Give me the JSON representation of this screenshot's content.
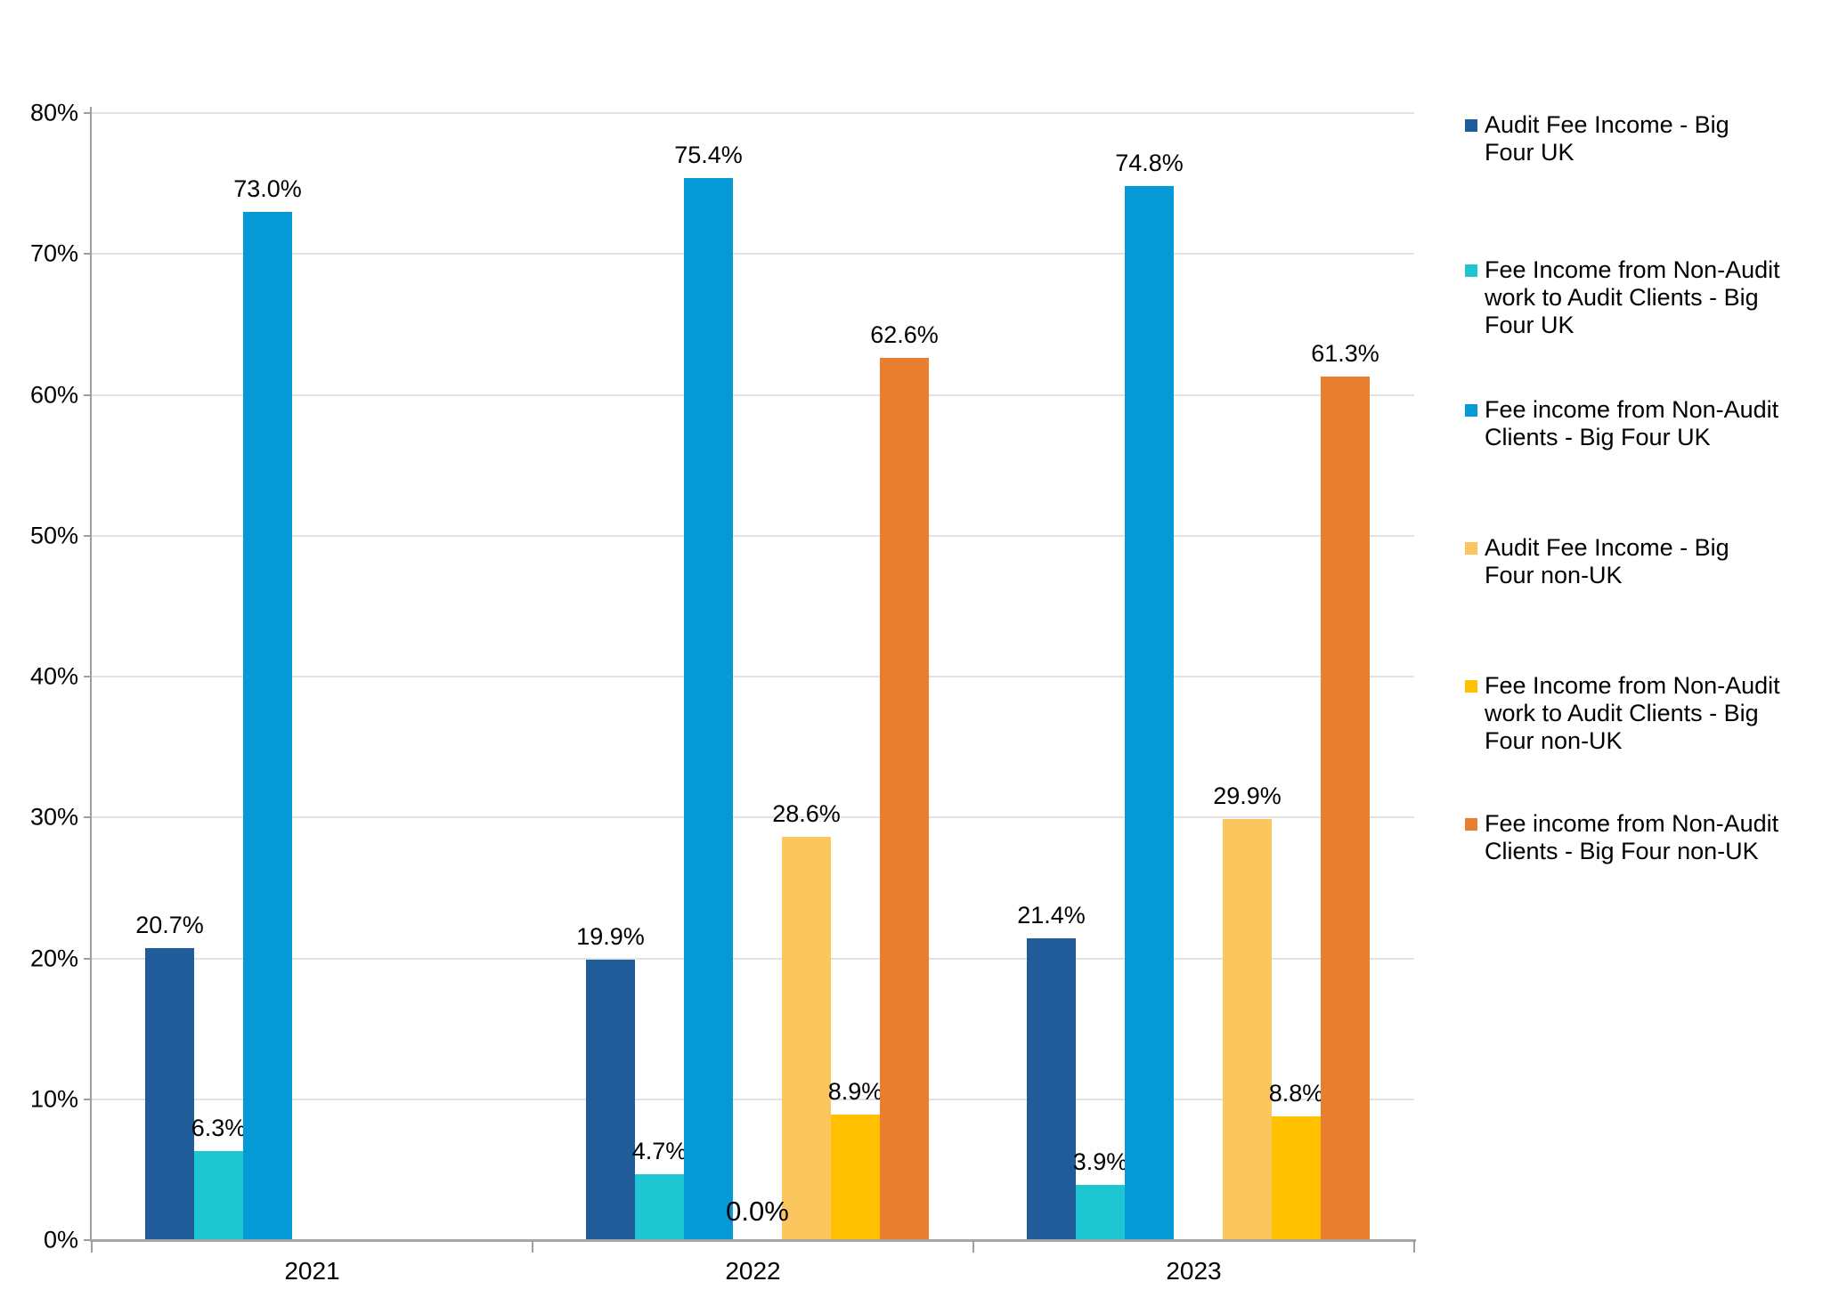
{
  "chart_data": {
    "type": "bar",
    "title": "",
    "xlabel": "",
    "ylabel": "",
    "categories": [
      "2021",
      "2022",
      "2023"
    ],
    "series": [
      {
        "name": "Audit Fee Income - Big Four UK",
        "legend_label": "Audit Fee Income - Big\nFour UK",
        "color": "#1F5C99",
        "values": [
          20.7,
          19.9,
          21.4
        ]
      },
      {
        "name": "Fee Income from Non-Audit work to Audit Clients - Big Four UK",
        "legend_label": "Fee Income from Non-Audit\nwork to Audit Clients - Big\nFour UK",
        "color": "#1EC6D1",
        "values": [
          6.3,
          4.7,
          3.9
        ]
      },
      {
        "name": "Fee income from Non-Audit Clients - Big Four UK",
        "legend_label": "Fee income from Non-Audit\nClients - Big Four UK",
        "color": "#0599D6",
        "values": [
          73.0,
          75.4,
          74.8
        ]
      },
      {
        "name": "Audit Fee Income - Big Four non-UK",
        "legend_label": "Audit Fee Income - Big\nFour non-UK",
        "color": "#FCC65E",
        "values": [
          null,
          28.6,
          29.9
        ]
      },
      {
        "name": "Fee Income from Non-Audit work to Audit Clients - Big Four non-UK",
        "legend_label": "Fee Income from Non-Audit\nwork to Audit Clients - Big\nFour non-UK",
        "color": "#FFC000",
        "values": [
          null,
          8.9,
          8.8
        ]
      },
      {
        "name": "Fee income from Non-Audit Clients - Big Four non-UK",
        "legend_label": "Fee income from Non-Audit\nClients - Big Four non-UK",
        "color": "#E97E2E",
        "values": [
          null,
          62.6,
          61.3
        ]
      }
    ],
    "data_labels": {
      "format": "one_decimal_percent",
      "visible": true
    },
    "annotations": [
      {
        "category": "2022",
        "position": "spacer-slot-baseline",
        "text": "0.0%"
      }
    ],
    "y_axis": {
      "min": 0,
      "max": 80,
      "step": 10,
      "tick_labels": [
        "0%",
        "10%",
        "20%",
        "30%",
        "40%",
        "50%",
        "60%",
        "70%",
        "80%"
      ]
    },
    "x_axis": {
      "tick_labels": [
        "2021",
        "2022",
        "2023"
      ]
    },
    "legend_position": "right",
    "grid": true,
    "colors": {
      "gridline": "#E2E2E2",
      "axis": "#9E9E9E",
      "baseline": "#A6A6A6",
      "text": "#000000",
      "background": "#FFFFFF"
    }
  }
}
